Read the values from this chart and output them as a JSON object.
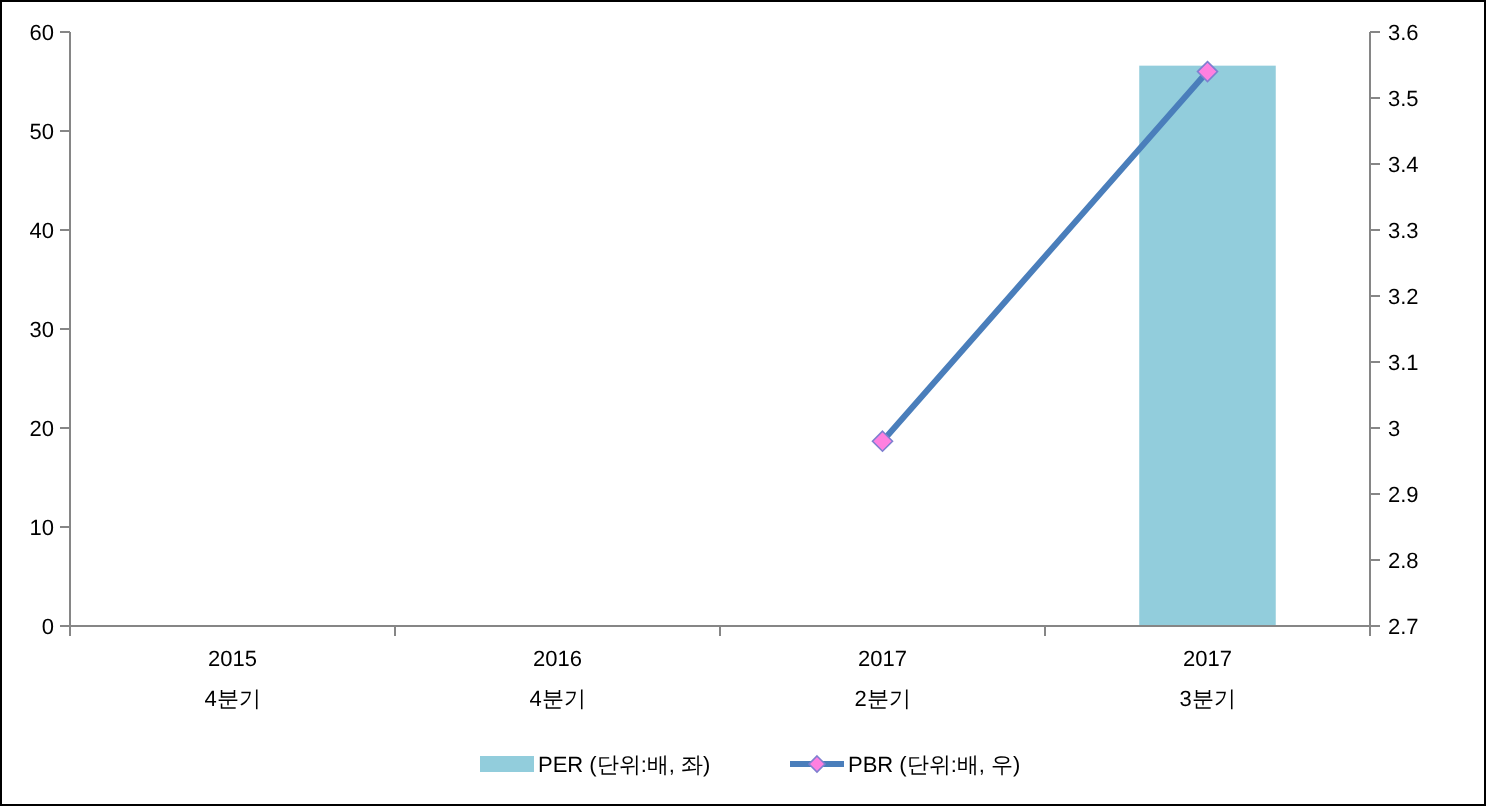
{
  "chart_data": {
    "type": "bar",
    "categories": [
      "2015\n4분기",
      "2016\n4분기",
      "2017\n2분기",
      "2017\n3분기"
    ],
    "series": [
      {
        "name": "PER (단위:배, 좌)",
        "color": "#92cddc",
        "values": [
          null,
          null,
          null,
          56.6
        ]
      },
      {
        "name": "PBR (단위:배, 우)",
        "type": "line",
        "axis": "y2",
        "color": "#4a7ebb",
        "marker": "diamond",
        "values": [
          null,
          null,
          2.98,
          3.54
        ]
      }
    ],
    "ylim": [
      0,
      60
    ],
    "yticks": [
      0,
      10,
      20,
      30,
      40,
      50,
      60
    ],
    "y2lim": [
      2.7,
      3.6
    ],
    "y2ticks": [
      2.7,
      2.8,
      2.9,
      3,
      3.1,
      3.2,
      3.3,
      3.4,
      3.5,
      3.6
    ],
    "grid": false,
    "legend": "bottom"
  }
}
